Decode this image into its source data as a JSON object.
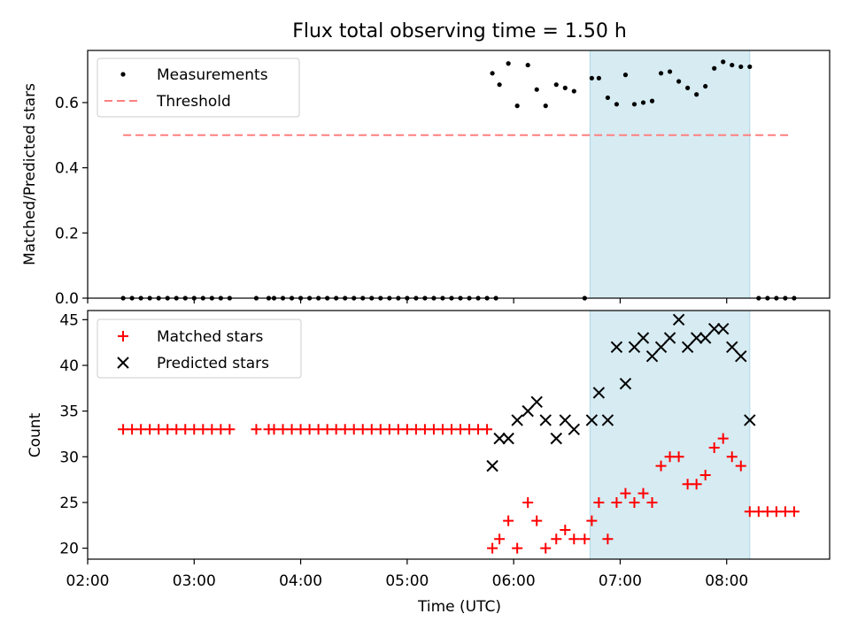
{
  "title": "Flux total observing time = 1.50 h",
  "highlight_window": {
    "start": "06:43",
    "end": "08:13",
    "color": "#add8e6"
  },
  "chart_data": [
    {
      "type": "scatter",
      "ylabel": "Matched/Predicted stars",
      "ylim": [
        0,
        0.76
      ],
      "yticks": [
        "0.0",
        "0.2",
        "0.4",
        "0.6"
      ],
      "legend_position": "top-left",
      "legend": [
        "Measurements",
        "Threshold"
      ],
      "threshold": {
        "value": 0.5,
        "x_start": "02:20",
        "x_end": "08:37",
        "color": "#ff7f7f"
      },
      "series": [
        {
          "name": "Measurements",
          "color": "#000000",
          "x": [
            "02:20",
            "02:25",
            "02:30",
            "02:35",
            "02:40",
            "02:45",
            "02:50",
            "02:55",
            "03:00",
            "03:05",
            "03:10",
            "03:15",
            "03:20",
            "03:35",
            "03:42",
            "03:45",
            "03:50",
            "03:55",
            "04:00",
            "04:05",
            "04:10",
            "04:15",
            "04:20",
            "04:25",
            "04:30",
            "04:35",
            "04:40",
            "04:45",
            "04:50",
            "04:55",
            "05:00",
            "05:05",
            "05:10",
            "05:15",
            "05:20",
            "05:25",
            "05:30",
            "05:35",
            "05:40",
            "05:45",
            "05:50",
            "05:48",
            "05:52",
            "05:57",
            "06:02",
            "06:08",
            "06:13",
            "06:18",
            "06:24",
            "06:29",
            "06:34",
            "06:40",
            "06:44",
            "06:48",
            "06:53",
            "06:58",
            "07:03",
            "07:08",
            "07:13",
            "07:18",
            "07:23",
            "07:28",
            "07:33",
            "07:38",
            "07:43",
            "07:48",
            "07:53",
            "07:58",
            "08:03",
            "08:08",
            "08:13",
            "08:18",
            "08:23",
            "08:28",
            "08:33",
            "08:38"
          ],
          "y": [
            0,
            0,
            0,
            0,
            0,
            0,
            0,
            0,
            0,
            0,
            0,
            0,
            0,
            0,
            0,
            0,
            0,
            0,
            0,
            0,
            0,
            0,
            0,
            0,
            0,
            0,
            0,
            0,
            0,
            0,
            0,
            0,
            0,
            0,
            0,
            0,
            0,
            0,
            0,
            0,
            0,
            0.69,
            0.655,
            0.72,
            0.59,
            0.715,
            0.64,
            0.59,
            0.655,
            0.645,
            0.635,
            0,
            0.675,
            0.675,
            0.615,
            0.595,
            0.685,
            0.595,
            0.6,
            0.605,
            0.69,
            0.695,
            0.665,
            0.645,
            0.625,
            0.65,
            0.705,
            0.725,
            0.715,
            0.71,
            0.71,
            0,
            0,
            0,
            0,
            0
          ]
        }
      ]
    },
    {
      "type": "scatter",
      "xlabel": "Time (UTC)",
      "ylabel": "Count",
      "ylim": [
        18.8,
        46
      ],
      "yticks": [
        "20",
        "25",
        "30",
        "35",
        "40",
        "45"
      ],
      "xlim": [
        "02:00",
        "08:58"
      ],
      "xticks": [
        "02:00",
        "03:00",
        "04:00",
        "05:00",
        "06:00",
        "07:00",
        "08:00"
      ],
      "legend_position": "top-left",
      "legend": [
        "Matched stars",
        "Predicted stars"
      ],
      "series": [
        {
          "name": "Matched stars",
          "color": "#ff0000",
          "marker": "plus",
          "x": [
            "02:20",
            "02:25",
            "02:30",
            "02:35",
            "02:40",
            "02:45",
            "02:50",
            "02:55",
            "03:00",
            "03:05",
            "03:10",
            "03:15",
            "03:20",
            "03:35",
            "03:42",
            "03:45",
            "03:50",
            "03:55",
            "04:00",
            "04:05",
            "04:10",
            "04:15",
            "04:20",
            "04:25",
            "04:30",
            "04:35",
            "04:40",
            "04:45",
            "04:50",
            "04:55",
            "05:00",
            "05:05",
            "05:10",
            "05:15",
            "05:20",
            "05:25",
            "05:30",
            "05:35",
            "05:40",
            "05:45",
            "05:48",
            "05:52",
            "05:57",
            "06:02",
            "06:08",
            "06:13",
            "06:18",
            "06:24",
            "06:29",
            "06:34",
            "06:40",
            "06:44",
            "06:48",
            "06:53",
            "06:58",
            "07:03",
            "07:08",
            "07:13",
            "07:18",
            "07:23",
            "07:28",
            "07:33",
            "07:38",
            "07:43",
            "07:48",
            "07:53",
            "07:58",
            "08:03",
            "08:08",
            "08:13",
            "08:18",
            "08:23",
            "08:28",
            "08:33",
            "08:38"
          ],
          "y": [
            33,
            33,
            33,
            33,
            33,
            33,
            33,
            33,
            33,
            33,
            33,
            33,
            33,
            33,
            33,
            33,
            33,
            33,
            33,
            33,
            33,
            33,
            33,
            33,
            33,
            33,
            33,
            33,
            33,
            33,
            33,
            33,
            33,
            33,
            33,
            33,
            33,
            33,
            33,
            33,
            20,
            21,
            23,
            20,
            25,
            23,
            20,
            21,
            22,
            21,
            21,
            23,
            25,
            21,
            25,
            26,
            25,
            26,
            25,
            29,
            30,
            30,
            27,
            27,
            28,
            31,
            32,
            30,
            29,
            24,
            24,
            24,
            24,
            24,
            24
          ]
        },
        {
          "name": "Predicted stars",
          "color": "#000000",
          "marker": "x",
          "x": [
            "05:48",
            "05:52",
            "05:57",
            "06:02",
            "06:08",
            "06:13",
            "06:18",
            "06:24",
            "06:29",
            "06:34",
            "06:44",
            "06:48",
            "06:53",
            "06:58",
            "07:03",
            "07:08",
            "07:13",
            "07:18",
            "07:23",
            "07:28",
            "07:33",
            "07:38",
            "07:43",
            "07:48",
            "07:53",
            "07:58",
            "08:03",
            "08:08",
            "08:13"
          ],
          "y": [
            29,
            32,
            32,
            34,
            35,
            36,
            34,
            32,
            34,
            33,
            34,
            37,
            34,
            42,
            38,
            42,
            43,
            41,
            42,
            43,
            45,
            42,
            43,
            43,
            44,
            44,
            42,
            41,
            34
          ]
        }
      ]
    }
  ]
}
